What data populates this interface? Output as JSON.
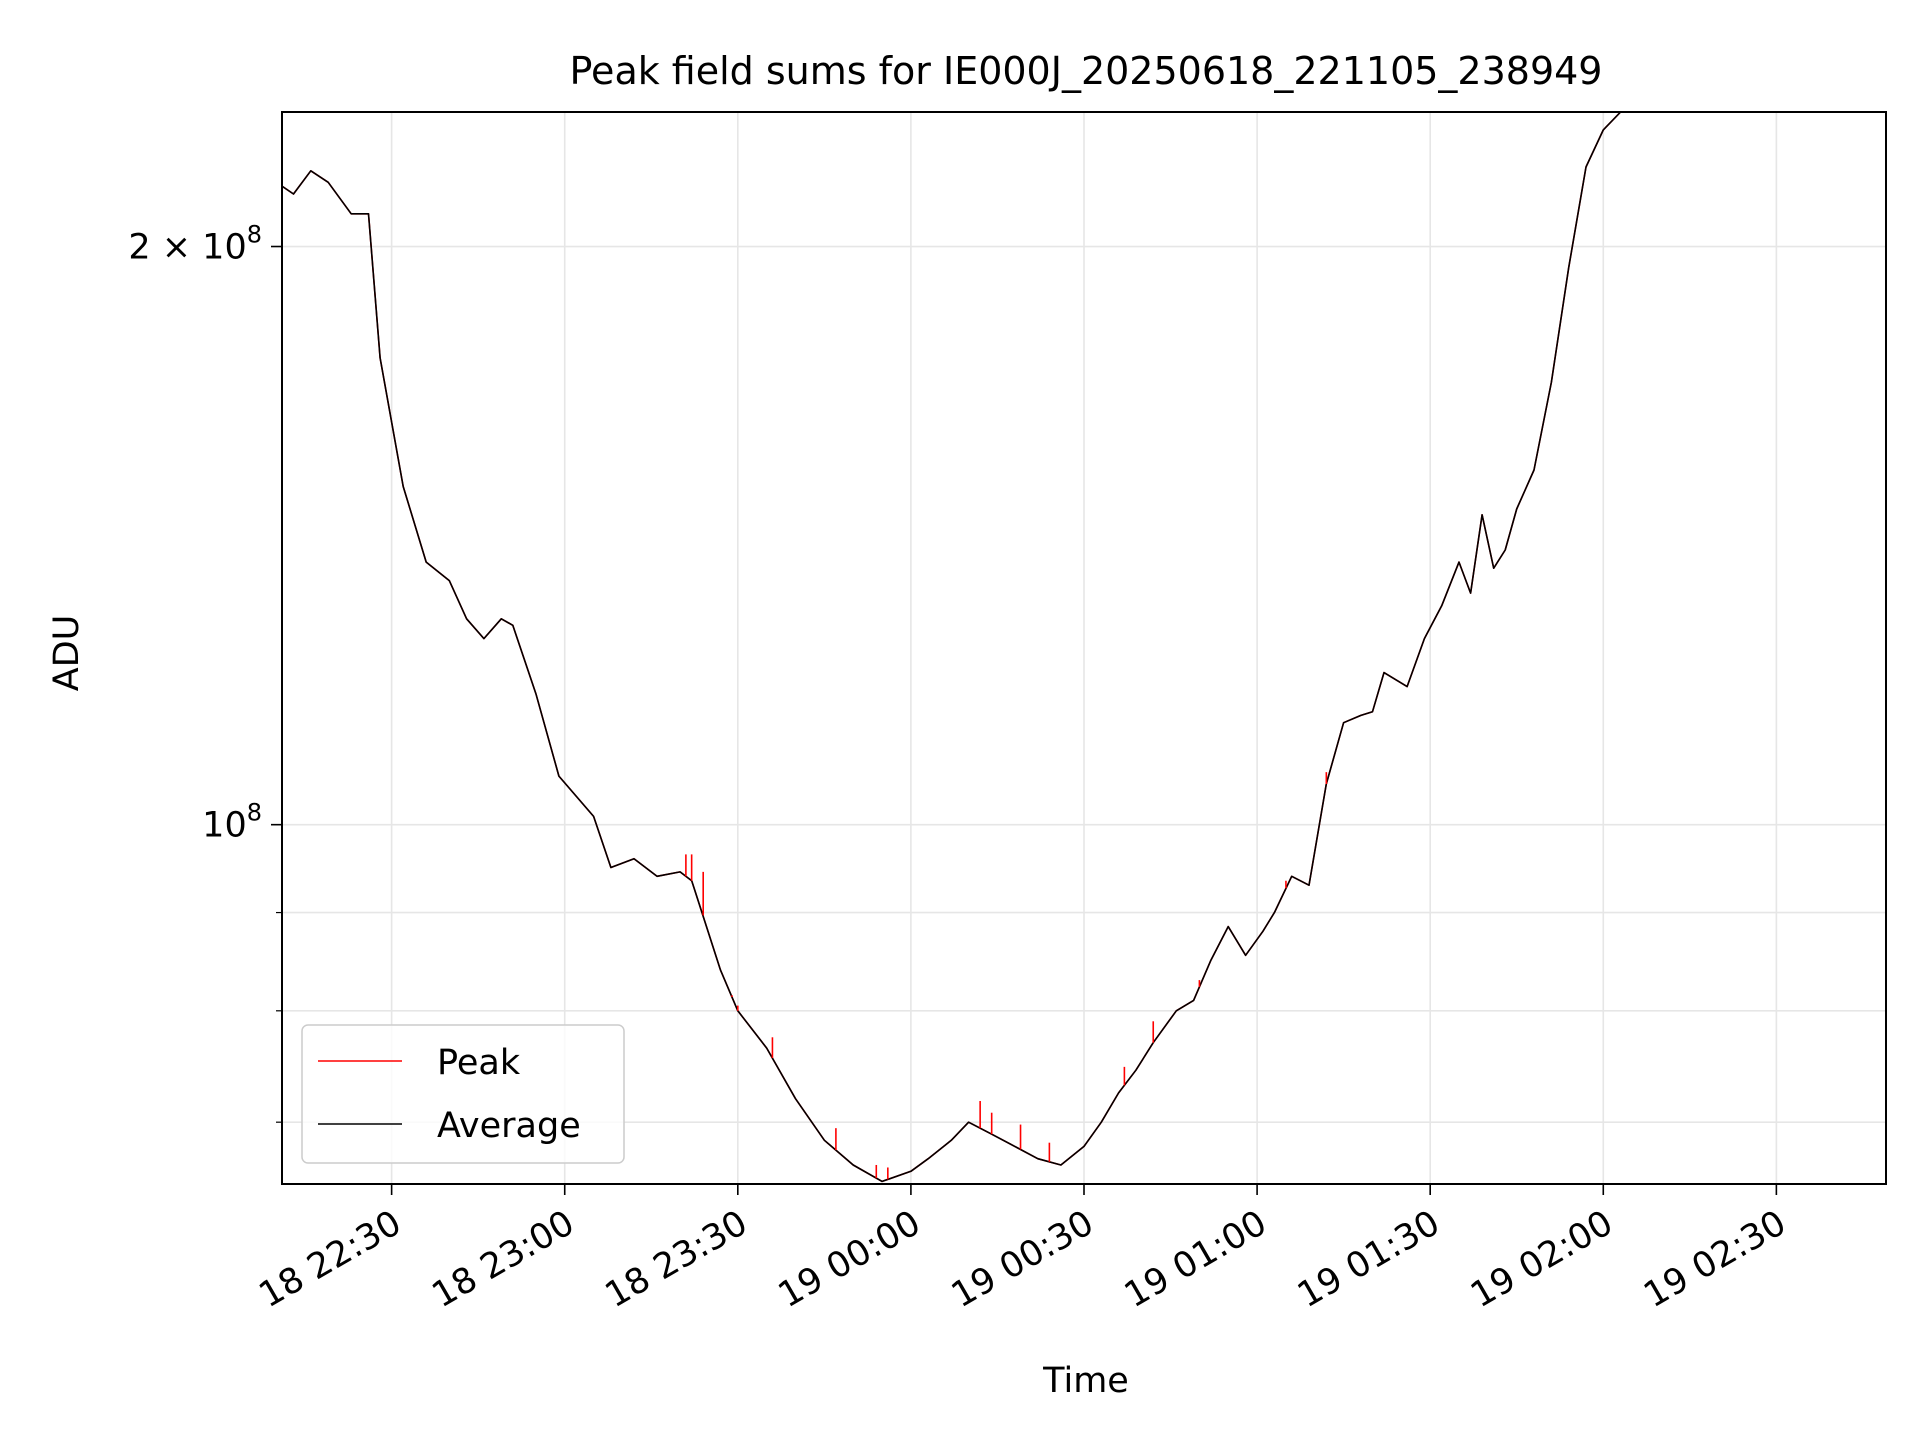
{
  "chart_data": {
    "type": "line",
    "title": "Peak field sums for IE000J_20250618_221105_238949",
    "xlabel": "Time",
    "ylabel": "ADU",
    "y_scale": "log",
    "grid": true,
    "legend_position": "lower-left",
    "x_range": [
      "2025-06-18 22:11",
      "2025-06-19 02:49"
    ],
    "y_range": [
      65000000,
      235000000
    ],
    "x_ticks": [
      "18 22:30",
      "18 23:00",
      "18 23:30",
      "19 00:00",
      "19 00:30",
      "19 01:00",
      "19 01:30",
      "19 02:00",
      "19 02:30"
    ],
    "y_tick_labels": [
      {
        "value": 200000000,
        "label": "2 × 10",
        "exp": "8"
      },
      {
        "value": 100000000,
        "label": "10",
        "exp": "8"
      }
    ],
    "y_minor_ticks": [
      70000000,
      80000000,
      90000000
    ],
    "colors": {
      "peak": "#ff0000",
      "average": "#000000",
      "grid": "#e6e6e6"
    },
    "series": [
      {
        "name": "Peak",
        "color": "#ff0000",
        "points": [
          [
            "2025-06-18 22:11",
            215000000
          ],
          [
            "2025-06-18 22:13",
            213000000
          ],
          [
            "2025-06-18 22:16",
            219000000
          ],
          [
            "2025-06-18 22:19",
            216000000
          ],
          [
            "2025-06-18 22:23",
            208000000
          ],
          [
            "2025-06-18 22:26",
            208000000
          ],
          [
            "2025-06-18 22:28",
            175000000
          ],
          [
            "2025-06-18 22:32",
            150000000
          ],
          [
            "2025-06-18 22:36",
            137000000
          ],
          [
            "2025-06-18 22:40",
            134000000
          ],
          [
            "2025-06-18 22:43",
            128000000
          ],
          [
            "2025-06-18 22:46",
            125000000
          ],
          [
            "2025-06-18 22:49",
            128000000
          ],
          [
            "2025-06-18 22:51",
            127000000
          ],
          [
            "2025-06-18 22:55",
            117000000
          ],
          [
            "2025-06-18 22:59",
            106000000
          ],
          [
            "2025-06-18 23:05",
            101000000
          ],
          [
            "2025-06-18 23:08",
            95000000
          ],
          [
            "2025-06-18 23:12",
            96000000
          ],
          [
            "2025-06-18 23:16",
            94000000
          ],
          [
            "2025-06-18 23:20",
            94500000
          ],
          [
            "2025-06-18 23:22",
            93500000
          ],
          [
            "2025-06-18 23:27",
            84000000
          ],
          [
            "2025-06-18 23:30",
            80000000
          ],
          [
            "2025-06-18 23:35",
            76500000
          ],
          [
            "2025-06-18 23:40",
            72000000
          ],
          [
            "2025-06-18 23:45",
            68500000
          ],
          [
            "2025-06-18 23:50",
            66500000
          ],
          [
            "2025-06-18 23:55",
            65200000
          ],
          [
            "2025-06-19 00:00",
            66000000
          ],
          [
            "2025-06-19 00:03",
            67000000
          ],
          [
            "2025-06-19 00:07",
            68500000
          ],
          [
            "2025-06-19 00:10",
            70000000
          ],
          [
            "2025-06-19 00:14",
            69000000
          ],
          [
            "2025-06-19 00:18",
            68000000
          ],
          [
            "2025-06-19 00:22",
            67000000
          ],
          [
            "2025-06-19 00:26",
            66500000
          ],
          [
            "2025-06-19 00:30",
            68000000
          ],
          [
            "2025-06-19 00:33",
            70000000
          ],
          [
            "2025-06-19 00:36",
            72500000
          ],
          [
            "2025-06-19 00:39",
            74500000
          ],
          [
            "2025-06-19 00:42",
            77000000
          ],
          [
            "2025-06-19 00:46",
            80000000
          ],
          [
            "2025-06-19 00:49",
            81000000
          ],
          [
            "2025-06-19 00:52",
            85000000
          ],
          [
            "2025-06-19 00:55",
            88500000
          ],
          [
            "2025-06-19 00:58",
            85500000
          ],
          [
            "2025-06-19 01:01",
            88000000
          ],
          [
            "2025-06-19 01:03",
            90000000
          ],
          [
            "2025-06-19 01:06",
            94000000
          ],
          [
            "2025-06-19 01:09",
            93000000
          ],
          [
            "2025-06-19 01:12",
            105000000
          ],
          [
            "2025-06-19 01:15",
            113000000
          ],
          [
            "2025-06-19 01:18",
            114000000
          ],
          [
            "2025-06-19 01:20",
            114500000
          ],
          [
            "2025-06-19 01:22",
            120000000
          ],
          [
            "2025-06-19 01:26",
            118000000
          ],
          [
            "2025-06-19 01:29",
            125000000
          ],
          [
            "2025-06-19 01:32",
            130000000
          ],
          [
            "2025-06-19 01:35",
            137000000
          ],
          [
            "2025-06-19 01:37",
            132000000
          ],
          [
            "2025-06-19 01:39",
            145000000
          ],
          [
            "2025-06-19 01:41",
            136000000
          ],
          [
            "2025-06-19 01:43",
            139000000
          ],
          [
            "2025-06-19 01:45",
            146000000
          ],
          [
            "2025-06-19 01:48",
            153000000
          ],
          [
            "2025-06-19 01:51",
            170000000
          ],
          [
            "2025-06-19 01:54",
            195000000
          ],
          [
            "2025-06-19 01:57",
            220000000
          ],
          [
            "2025-06-19 02:00",
            230000000
          ],
          [
            "2025-06-19 02:03",
            235000000
          ],
          [
            "2025-06-19 02:49",
            235000000
          ]
        ]
      },
      {
        "name": "Average",
        "color": "#000000",
        "points": [
          [
            "2025-06-18 22:11",
            215000000
          ],
          [
            "2025-06-18 22:13",
            213000000
          ],
          [
            "2025-06-18 22:16",
            219000000
          ],
          [
            "2025-06-18 22:19",
            216000000
          ],
          [
            "2025-06-18 22:23",
            208000000
          ],
          [
            "2025-06-18 22:26",
            208000000
          ],
          [
            "2025-06-18 22:28",
            175000000
          ],
          [
            "2025-06-18 22:32",
            150000000
          ],
          [
            "2025-06-18 22:36",
            137000000
          ],
          [
            "2025-06-18 22:40",
            134000000
          ],
          [
            "2025-06-18 22:43",
            128000000
          ],
          [
            "2025-06-18 22:46",
            125000000
          ],
          [
            "2025-06-18 22:49",
            128000000
          ],
          [
            "2025-06-18 22:51",
            127000000
          ],
          [
            "2025-06-18 22:55",
            117000000
          ],
          [
            "2025-06-18 22:59",
            106000000
          ],
          [
            "2025-06-18 23:05",
            101000000
          ],
          [
            "2025-06-18 23:08",
            95000000
          ],
          [
            "2025-06-18 23:12",
            96000000
          ],
          [
            "2025-06-18 23:16",
            94000000
          ],
          [
            "2025-06-18 23:20",
            94500000
          ],
          [
            "2025-06-18 23:22",
            93500000
          ],
          [
            "2025-06-18 23:27",
            84000000
          ],
          [
            "2025-06-18 23:30",
            80000000
          ],
          [
            "2025-06-18 23:35",
            76500000
          ],
          [
            "2025-06-18 23:40",
            72000000
          ],
          [
            "2025-06-18 23:45",
            68500000
          ],
          [
            "2025-06-18 23:50",
            66500000
          ],
          [
            "2025-06-18 23:55",
            65200000
          ],
          [
            "2025-06-19 00:00",
            66000000
          ],
          [
            "2025-06-19 00:03",
            67000000
          ],
          [
            "2025-06-19 00:07",
            68500000
          ],
          [
            "2025-06-19 00:10",
            70000000
          ],
          [
            "2025-06-19 00:14",
            69000000
          ],
          [
            "2025-06-19 00:18",
            68000000
          ],
          [
            "2025-06-19 00:22",
            67000000
          ],
          [
            "2025-06-19 00:26",
            66500000
          ],
          [
            "2025-06-19 00:30",
            68000000
          ],
          [
            "2025-06-19 00:33",
            70000000
          ],
          [
            "2025-06-19 00:36",
            72500000
          ],
          [
            "2025-06-19 00:39",
            74500000
          ],
          [
            "2025-06-19 00:42",
            77000000
          ],
          [
            "2025-06-19 00:46",
            80000000
          ],
          [
            "2025-06-19 00:49",
            81000000
          ],
          [
            "2025-06-19 00:52",
            85000000
          ],
          [
            "2025-06-19 00:55",
            88500000
          ],
          [
            "2025-06-19 00:58",
            85500000
          ],
          [
            "2025-06-19 01:01",
            88000000
          ],
          [
            "2025-06-19 01:03",
            90000000
          ],
          [
            "2025-06-19 01:06",
            94000000
          ],
          [
            "2025-06-19 01:09",
            93000000
          ],
          [
            "2025-06-19 01:12",
            105000000
          ],
          [
            "2025-06-19 01:15",
            113000000
          ],
          [
            "2025-06-19 01:18",
            114000000
          ],
          [
            "2025-06-19 01:20",
            114500000
          ],
          [
            "2025-06-19 01:22",
            120000000
          ],
          [
            "2025-06-19 01:26",
            118000000
          ],
          [
            "2025-06-19 01:29",
            125000000
          ],
          [
            "2025-06-19 01:32",
            130000000
          ],
          [
            "2025-06-19 01:35",
            137000000
          ],
          [
            "2025-06-19 01:37",
            132000000
          ],
          [
            "2025-06-19 01:39",
            145000000
          ],
          [
            "2025-06-19 01:41",
            136000000
          ],
          [
            "2025-06-19 01:43",
            139000000
          ],
          [
            "2025-06-19 01:45",
            146000000
          ],
          [
            "2025-06-19 01:48",
            153000000
          ],
          [
            "2025-06-19 01:51",
            170000000
          ],
          [
            "2025-06-19 01:54",
            195000000
          ],
          [
            "2025-06-19 01:57",
            220000000
          ],
          [
            "2025-06-19 02:00",
            230000000
          ],
          [
            "2025-06-19 02:03",
            235000000
          ],
          [
            "2025-06-19 02:49",
            235000000
          ]
        ]
      }
    ],
    "peak_spikes": [
      [
        "2025-06-18 23:21",
        96500000
      ],
      [
        "2025-06-18 23:22",
        96500000
      ],
      [
        "2025-06-18 23:24",
        94500000
      ],
      [
        "2025-06-18 23:29",
        81500000
      ],
      [
        "2025-06-18 23:30",
        80500000
      ],
      [
        "2025-06-18 23:36",
        77500000
      ],
      [
        "2025-06-18 23:47",
        69500000
      ],
      [
        "2025-06-18 23:54",
        66500000
      ],
      [
        "2025-06-18 23:56",
        66300000
      ],
      [
        "2025-06-19 00:12",
        71800000
      ],
      [
        "2025-06-19 00:14",
        70800000
      ],
      [
        "2025-06-19 00:19",
        69800000
      ],
      [
        "2025-06-19 00:24",
        68300000
      ],
      [
        "2025-06-19 00:37",
        74800000
      ],
      [
        "2025-06-19 00:42",
        79000000
      ],
      [
        "2025-06-19 00:50",
        83000000
      ],
      [
        "2025-06-19 01:05",
        93500000
      ],
      [
        "2025-06-19 01:12",
        106500000
      ]
    ]
  },
  "legend": {
    "items": [
      {
        "label": "Peak",
        "color": "#ff0000"
      },
      {
        "label": "Average",
        "color": "#000000"
      }
    ]
  }
}
